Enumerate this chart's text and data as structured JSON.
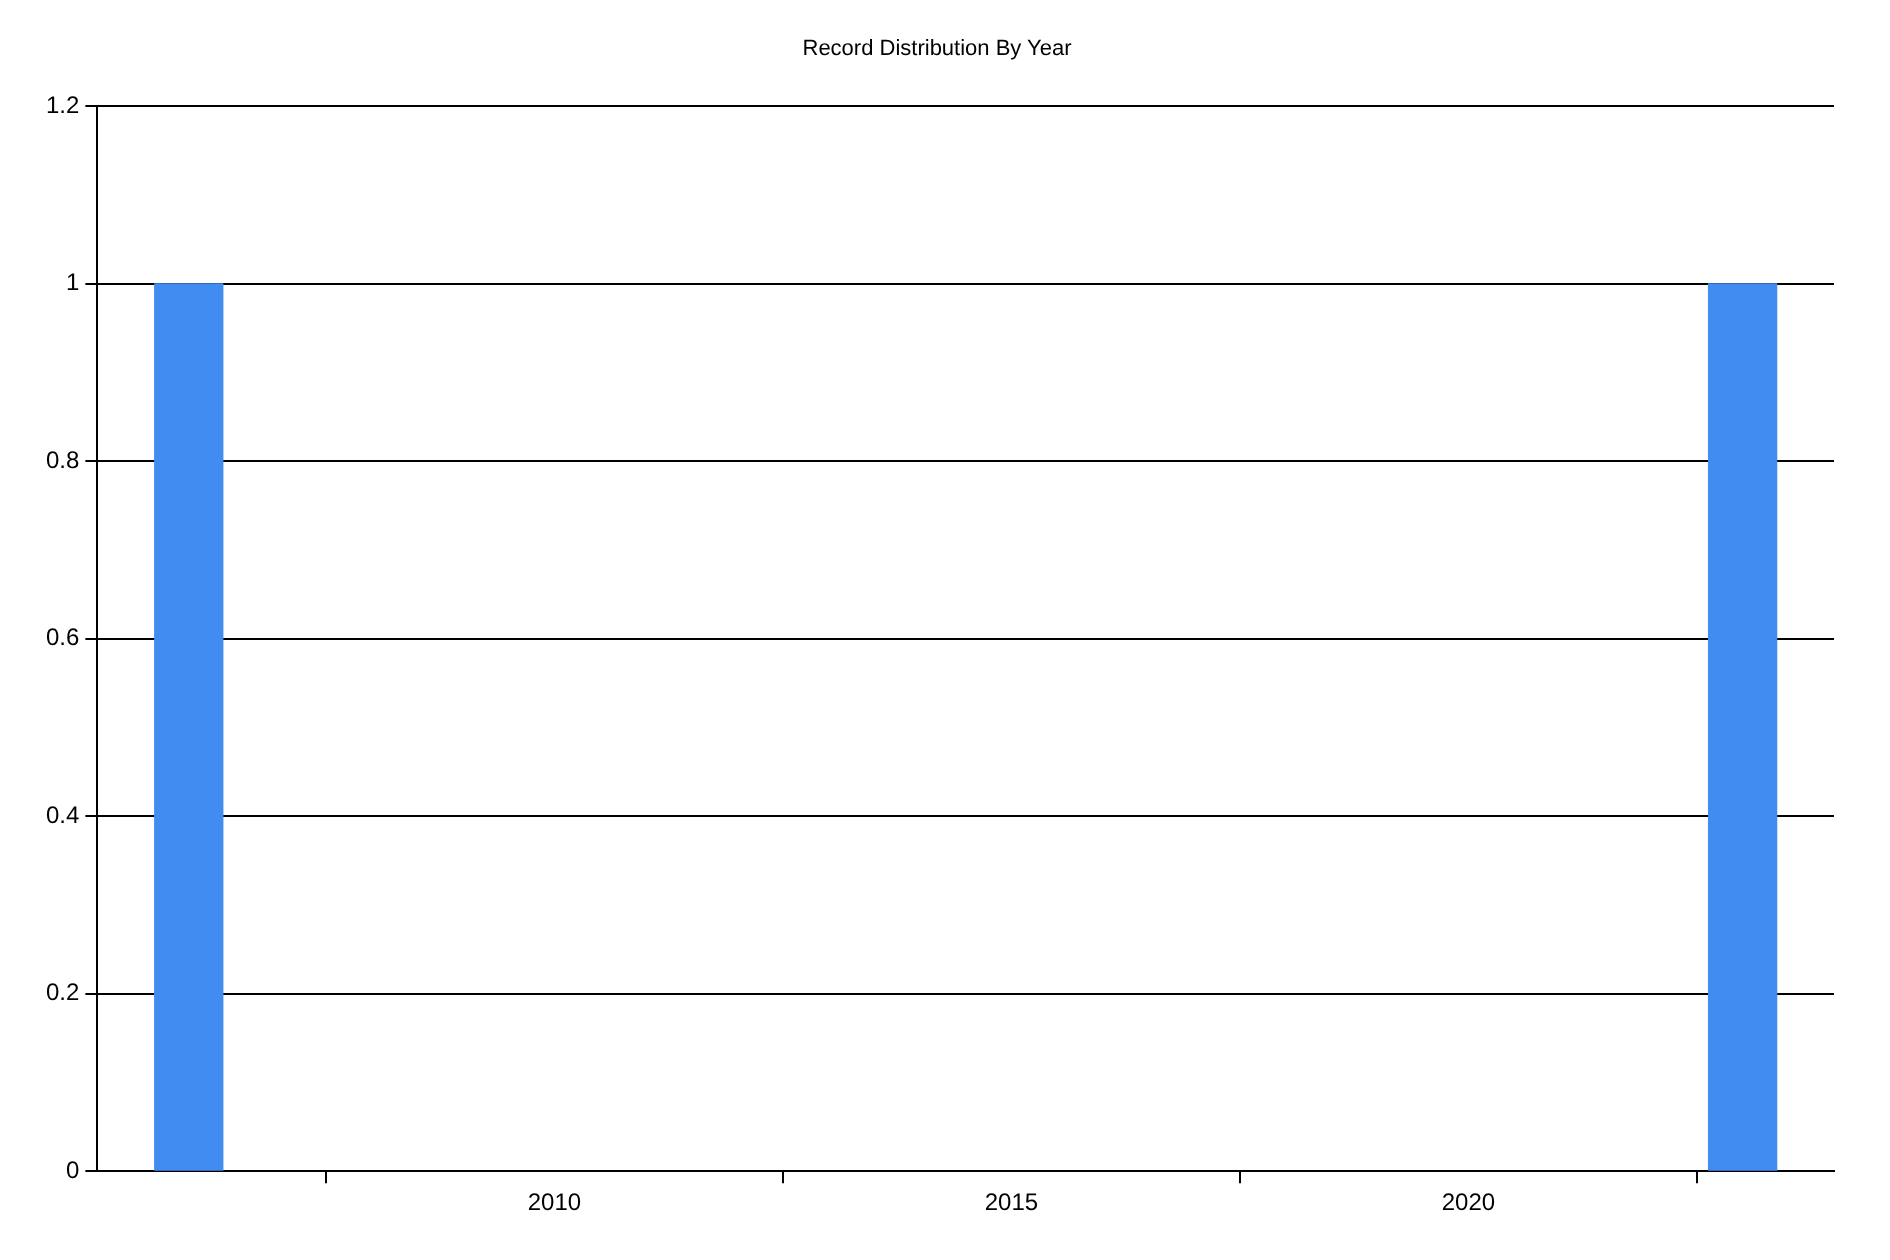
{
  "chart_data": {
    "type": "bar",
    "title": "Record Distribution By Year",
    "x": [
      2006,
      2023
    ],
    "values": [
      1,
      1
    ],
    "color": "#418cf0",
    "xlim": [
      2005,
      2024
    ],
    "xticks": [
      2010,
      2015,
      2020
    ],
    "ylim": [
      0,
      1.2
    ],
    "yticks": [
      0,
      0.2,
      0.4,
      0.6,
      0.8,
      1,
      1.2
    ],
    "grid": "y",
    "legend": false
  }
}
